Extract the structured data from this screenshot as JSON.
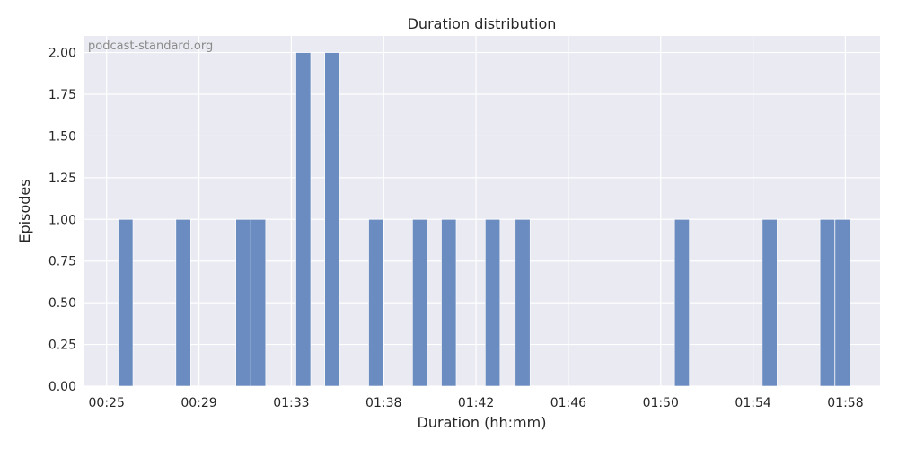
{
  "chart_data": {
    "type": "bar",
    "title": "Duration distribution",
    "xlabel": "Duration (hh:mm)",
    "ylabel": "Episodes",
    "watermark": "podcast-standard.org",
    "x_tick_labels": [
      "00:25",
      "00:29",
      "01:33",
      "01:38",
      "01:42",
      "01:46",
      "01:50",
      "01:54",
      "01:58"
    ],
    "x_tick_positions": [
      0,
      4,
      8,
      12,
      16,
      20,
      24,
      28,
      32
    ],
    "xlim": [
      -1,
      33.5
    ],
    "ylim": [
      0,
      2.1
    ],
    "y_ticks": [
      0,
      0.25,
      0.5,
      0.75,
      1.0,
      1.25,
      1.5,
      1.75,
      2.0
    ],
    "y_tick_labels": [
      "0.00",
      "0.25",
      "0.50",
      "0.75",
      "1.00",
      "1.25",
      "1.50",
      "1.75",
      "2.00"
    ],
    "bin_width": 0.64,
    "bars": [
      {
        "x": 0.5,
        "value": 1
      },
      {
        "x": 3.0,
        "value": 1
      },
      {
        "x": 5.6,
        "value": 1
      },
      {
        "x": 6.25,
        "value": 1
      },
      {
        "x": 8.2,
        "value": 2
      },
      {
        "x": 9.45,
        "value": 2
      },
      {
        "x": 11.35,
        "value": 1
      },
      {
        "x": 13.25,
        "value": 1
      },
      {
        "x": 14.5,
        "value": 1
      },
      {
        "x": 16.4,
        "value": 1
      },
      {
        "x": 17.7,
        "value": 1
      },
      {
        "x": 24.6,
        "value": 1
      },
      {
        "x": 28.4,
        "value": 1
      },
      {
        "x": 30.9,
        "value": 1
      },
      {
        "x": 31.55,
        "value": 1
      }
    ],
    "grid": true,
    "colors": {
      "background": "#eaeaf2",
      "grid": "#ffffff",
      "bar": "#6b8cc0"
    }
  }
}
